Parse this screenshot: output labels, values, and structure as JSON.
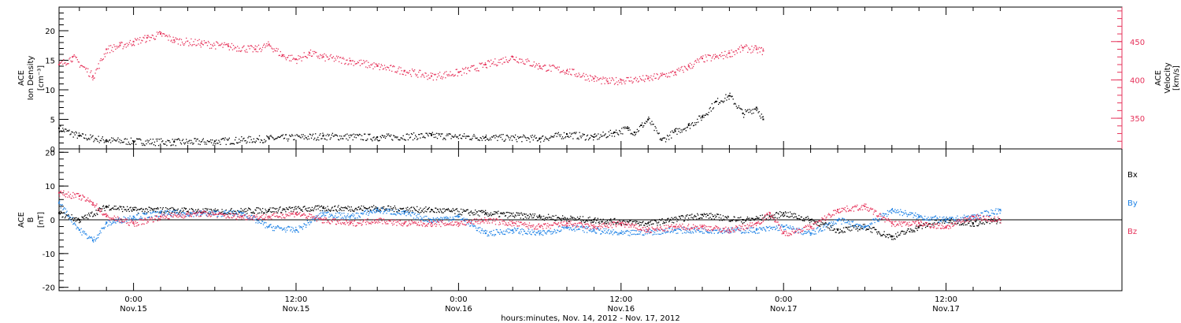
{
  "colors": {
    "black": "#000000",
    "red": "#e6325a",
    "blue": "#1e82e6"
  },
  "chart_data": [
    {
      "type": "scatter",
      "left_axis": {
        "label_lines": [
          "ACE",
          "Ion Density"
        ],
        "unit": "[cm⁻³]",
        "ylim": [
          0,
          24
        ],
        "ticks": [
          "0",
          "5",
          "10",
          "15",
          "20"
        ]
      },
      "right_axis": {
        "label_lines": [
          "ACE",
          "Velocity"
        ],
        "unit": "[km/s]",
        "ylim": [
          310,
          495
        ],
        "ticks": [
          "350",
          "400",
          "450"
        ]
      },
      "time_start_hours": -5.5,
      "time_end_hours": 46.5,
      "series": [
        {
          "axis": "left",
          "color": "black",
          "x": [
            -5.5,
            -4,
            -2,
            0,
            3,
            6,
            10,
            14,
            18,
            22,
            26,
            30,
            32,
            34,
            35.5,
            36.5,
            37,
            37.5,
            38,
            39,
            40,
            41,
            42,
            43,
            44,
            45,
            46,
            46.5
          ],
          "y": [
            3.5,
            2.2,
            1.5,
            1.3,
            1.2,
            1.3,
            1.8,
            2.2,
            2.0,
            2.3,
            2.0,
            1.8,
            2.5,
            2.0,
            2.8,
            3.5,
            2.8,
            4.0,
            5.0,
            1.5,
            3.0,
            4.0,
            5.5,
            8,
            9,
            6,
            7,
            5
          ]
        },
        {
          "axis": "right",
          "color": "red",
          "x": [
            -5.5,
            -4.5,
            -3,
            -2,
            -1,
            0,
            1,
            2,
            3,
            5,
            7,
            9,
            10,
            11,
            12,
            13,
            14,
            16,
            18,
            20,
            22,
            24,
            26,
            28,
            30,
            32,
            34,
            35,
            36,
            38,
            39,
            40,
            41,
            42,
            43,
            44,
            45,
            46,
            46.5
          ],
          "y": [
            420,
            430,
            405,
            440,
            445,
            450,
            455,
            460,
            452,
            448,
            444,
            440,
            446,
            432,
            427,
            435,
            430,
            425,
            418,
            412,
            405,
            410,
            420,
            430,
            418,
            412,
            402,
            398,
            400,
            402,
            406,
            410,
            418,
            428,
            430,
            435,
            442,
            440,
            438
          ]
        }
      ]
    },
    {
      "type": "scatter",
      "left_axis": {
        "label_lines": [
          "ACE",
          "B"
        ],
        "unit": "[nT]",
        "ylim": [
          -21,
          21
        ],
        "ticks": [
          "-20",
          "-10",
          "0",
          "10",
          "20"
        ]
      },
      "x_ticks": [
        {
          "time": "0:00",
          "date": "Nov.15",
          "hour": 0
        },
        {
          "time": "12:00",
          "date": "Nov.15",
          "hour": 12
        },
        {
          "time": "0:00",
          "date": "Nov.16",
          "hour": 24
        },
        {
          "time": "12:00",
          "date": "Nov.16",
          "hour": 36
        },
        {
          "time": "0:00",
          "date": "Nov.17",
          "hour": 48
        },
        {
          "time": "12:00",
          "date": "Nov.17",
          "hour": 60
        }
      ],
      "xlabel": "hours:minutes, Nov. 14, 2012 - Nov. 17, 2012",
      "series": [
        {
          "name": "Bx",
          "color": "black",
          "x": [
            -5.5,
            -4,
            -2,
            0,
            3,
            6,
            10,
            14,
            18,
            22,
            26,
            30,
            34,
            38,
            42,
            45,
            47,
            48,
            50,
            52,
            54,
            56,
            58,
            60,
            62,
            64
          ],
          "y": [
            2,
            0,
            4,
            3,
            3,
            2.5,
            3,
            3.5,
            3.5,
            3,
            2,
            1,
            0,
            -1,
            1.5,
            0,
            1,
            2,
            0,
            -3,
            -2,
            -5,
            -2,
            0,
            -1,
            0
          ]
        },
        {
          "name": "By",
          "color": "blue",
          "x": [
            -5.5,
            -4,
            -3,
            -2,
            0,
            2,
            5,
            8,
            10,
            12,
            14,
            16,
            18,
            20,
            22,
            24,
            26,
            28,
            30,
            32,
            34,
            36,
            40,
            44,
            46,
            48,
            50,
            52,
            54,
            56,
            58,
            60,
            62,
            64
          ],
          "y": [
            5,
            -3,
            -6,
            -1,
            1,
            2,
            2,
            2,
            -2,
            -3,
            2,
            1,
            3,
            2,
            0,
            1,
            -4,
            -3,
            -4,
            -2,
            -3,
            -4,
            -3,
            -3,
            -3,
            -2,
            -4,
            0,
            -2,
            3,
            1,
            0,
            1,
            3
          ]
        },
        {
          "name": "Bz",
          "color": "red",
          "x": [
            -5.5,
            -4,
            -3,
            -2,
            0,
            2,
            5,
            8,
            10,
            12,
            14,
            16,
            18,
            20,
            22,
            24,
            26,
            28,
            30,
            32,
            34,
            36,
            38,
            40,
            42,
            44,
            46,
            47,
            48,
            50,
            52,
            54,
            56,
            58,
            60,
            62,
            64
          ],
          "y": [
            8,
            7,
            5,
            1,
            -1,
            1,
            2,
            1,
            1,
            2,
            0,
            -1,
            0,
            -1,
            -1,
            -1,
            0,
            -1,
            -2,
            -1,
            -2,
            -1,
            -3,
            -2,
            -2,
            -3,
            -1,
            2,
            -4,
            -2,
            3,
            4,
            -1,
            -1,
            -2,
            1,
            0
          ]
        }
      ]
    }
  ]
}
